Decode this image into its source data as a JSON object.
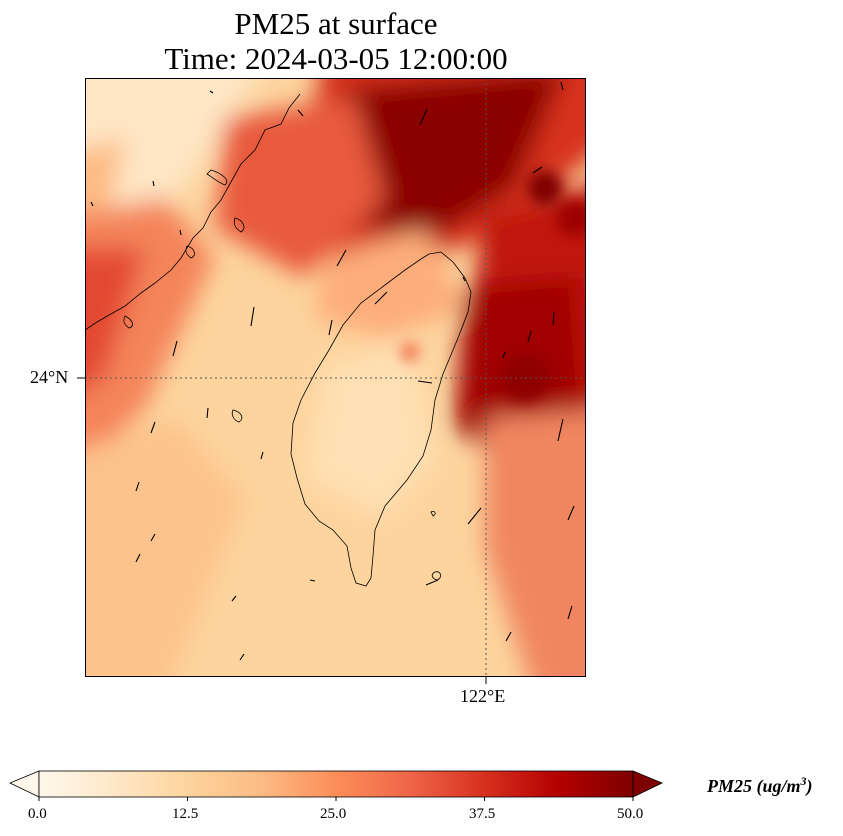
{
  "title": {
    "line1": "PM25 at surface",
    "line2": "Time: 2024-03-05 12:00:00"
  },
  "map": {
    "region": "Taiwan Strait and Taiwan",
    "lat_label": "24°N",
    "lon_label": "122°E",
    "gridline_style": "dotted",
    "variable": "PM25",
    "wind_vectors_shown": true
  },
  "colorbar": {
    "colormap": "OrRd",
    "colors": [
      "#fff7ec",
      "#fee8c8",
      "#fdd49e",
      "#fdbb84",
      "#fc8d59",
      "#ef6548",
      "#d7301f",
      "#b30000",
      "#7f0000"
    ],
    "min": 0,
    "max": 50,
    "extend": "both",
    "ticks": [
      "0.0",
      "12.5",
      "25.0",
      "37.5",
      "50.0"
    ],
    "label_base": "PM25 (ug/m",
    "label_sup": "3",
    "label_close": ")"
  }
}
